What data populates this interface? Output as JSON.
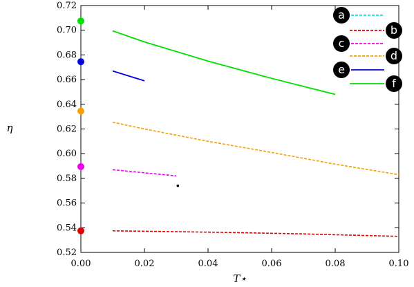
{
  "chart_data": {
    "type": "line",
    "xlabel": "T⋆",
    "ylabel": "η",
    "xlim": [
      0.0,
      0.1
    ],
    "ylim": [
      0.52,
      0.72
    ],
    "xticks": [
      "0.00",
      "0.02",
      "0.04",
      "0.06",
      "0.08",
      "0.10"
    ],
    "yticks": [
      "0.52",
      "0.54",
      "0.56",
      "0.58",
      "0.60",
      "0.62",
      "0.64",
      "0.66",
      "0.68",
      "0.70",
      "0.72"
    ],
    "grid": false,
    "legend_position": "top-right",
    "series": [
      {
        "name": "a",
        "color": "#00e5ee",
        "dash": true,
        "x": [],
        "y": []
      },
      {
        "name": "b",
        "color": "#e00000",
        "dash": true,
        "x": [
          0.01,
          0.03,
          0.05,
          0.07,
          0.1
        ],
        "y": [
          0.5375,
          0.5368,
          0.536,
          0.535,
          0.533
        ]
      },
      {
        "name": "c",
        "color": "#ee00ee",
        "dash": true,
        "x": [
          0.01,
          0.02,
          0.03
        ],
        "y": [
          0.587,
          0.5845,
          0.582
        ]
      },
      {
        "name": "d",
        "color": "#f5a000",
        "dash": true,
        "x": [
          0.01,
          0.02,
          0.04,
          0.06,
          0.08,
          0.1
        ],
        "y": [
          0.6255,
          0.62,
          0.61,
          0.601,
          0.5915,
          0.583
        ]
      },
      {
        "name": "e",
        "color": "#0000e0",
        "dash": false,
        "x": [
          0.01,
          0.02
        ],
        "y": [
          0.667,
          0.659
        ]
      },
      {
        "name": "f",
        "color": "#00e000",
        "dash": false,
        "x": [
          0.01,
          0.02,
          0.04,
          0.06,
          0.08
        ],
        "y": [
          0.6995,
          0.6905,
          0.675,
          0.661,
          0.648
        ]
      }
    ],
    "points": [
      {
        "x": 0.0,
        "y": 0.7075,
        "color": "#00e000"
      },
      {
        "x": 0.0,
        "y": 0.6745,
        "color": "#0000e0"
      },
      {
        "x": 0.0,
        "y": 0.6345,
        "color": "#f5a000"
      },
      {
        "x": 0.0,
        "y": 0.5895,
        "color": "#ee00ee"
      },
      {
        "x": 0.0,
        "y": 0.5375,
        "color": "#e00000"
      },
      {
        "x": 0.0305,
        "y": 0.574,
        "color": "#000000",
        "small": true
      }
    ]
  }
}
